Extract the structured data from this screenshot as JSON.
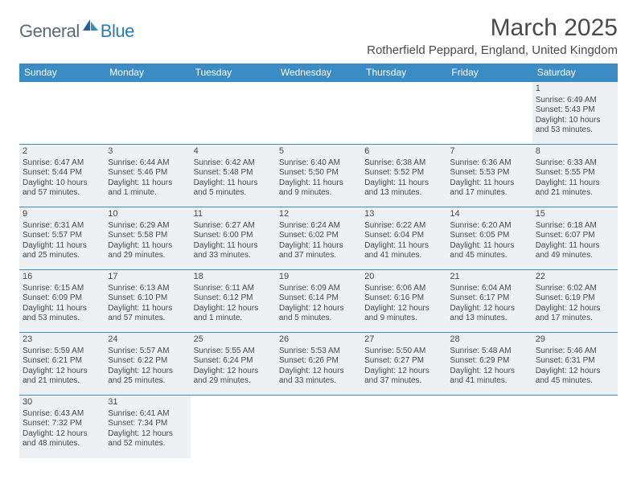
{
  "logo": {
    "text_a": "General",
    "text_b": "Blue"
  },
  "title": "March 2025",
  "location": "Rotherfield Peppard, England, United Kingdom",
  "colors": {
    "header_bg": "#3b8bc4",
    "header_text": "#ffffff",
    "cell_filled_bg": "#eef1f3",
    "cell_border": "#3b8bc4",
    "text": "#4a4a4a",
    "logo_gray": "#5a6a72",
    "logo_blue": "#2a7ab8"
  },
  "weekdays": [
    "Sunday",
    "Monday",
    "Tuesday",
    "Wednesday",
    "Thursday",
    "Friday",
    "Saturday"
  ],
  "weeks": [
    [
      null,
      null,
      null,
      null,
      null,
      null,
      {
        "n": "1",
        "sr": "Sunrise: 6:49 AM",
        "ss": "Sunset: 5:43 PM",
        "d1": "Daylight: 10 hours",
        "d2": "and 53 minutes."
      }
    ],
    [
      {
        "n": "2",
        "sr": "Sunrise: 6:47 AM",
        "ss": "Sunset: 5:44 PM",
        "d1": "Daylight: 10 hours",
        "d2": "and 57 minutes."
      },
      {
        "n": "3",
        "sr": "Sunrise: 6:44 AM",
        "ss": "Sunset: 5:46 PM",
        "d1": "Daylight: 11 hours",
        "d2": "and 1 minute."
      },
      {
        "n": "4",
        "sr": "Sunrise: 6:42 AM",
        "ss": "Sunset: 5:48 PM",
        "d1": "Daylight: 11 hours",
        "d2": "and 5 minutes."
      },
      {
        "n": "5",
        "sr": "Sunrise: 6:40 AM",
        "ss": "Sunset: 5:50 PM",
        "d1": "Daylight: 11 hours",
        "d2": "and 9 minutes."
      },
      {
        "n": "6",
        "sr": "Sunrise: 6:38 AM",
        "ss": "Sunset: 5:52 PM",
        "d1": "Daylight: 11 hours",
        "d2": "and 13 minutes."
      },
      {
        "n": "7",
        "sr": "Sunrise: 6:36 AM",
        "ss": "Sunset: 5:53 PM",
        "d1": "Daylight: 11 hours",
        "d2": "and 17 minutes."
      },
      {
        "n": "8",
        "sr": "Sunrise: 6:33 AM",
        "ss": "Sunset: 5:55 PM",
        "d1": "Daylight: 11 hours",
        "d2": "and 21 minutes."
      }
    ],
    [
      {
        "n": "9",
        "sr": "Sunrise: 6:31 AM",
        "ss": "Sunset: 5:57 PM",
        "d1": "Daylight: 11 hours",
        "d2": "and 25 minutes."
      },
      {
        "n": "10",
        "sr": "Sunrise: 6:29 AM",
        "ss": "Sunset: 5:58 PM",
        "d1": "Daylight: 11 hours",
        "d2": "and 29 minutes."
      },
      {
        "n": "11",
        "sr": "Sunrise: 6:27 AM",
        "ss": "Sunset: 6:00 PM",
        "d1": "Daylight: 11 hours",
        "d2": "and 33 minutes."
      },
      {
        "n": "12",
        "sr": "Sunrise: 6:24 AM",
        "ss": "Sunset: 6:02 PM",
        "d1": "Daylight: 11 hours",
        "d2": "and 37 minutes."
      },
      {
        "n": "13",
        "sr": "Sunrise: 6:22 AM",
        "ss": "Sunset: 6:04 PM",
        "d1": "Daylight: 11 hours",
        "d2": "and 41 minutes."
      },
      {
        "n": "14",
        "sr": "Sunrise: 6:20 AM",
        "ss": "Sunset: 6:05 PM",
        "d1": "Daylight: 11 hours",
        "d2": "and 45 minutes."
      },
      {
        "n": "15",
        "sr": "Sunrise: 6:18 AM",
        "ss": "Sunset: 6:07 PM",
        "d1": "Daylight: 11 hours",
        "d2": "and 49 minutes."
      }
    ],
    [
      {
        "n": "16",
        "sr": "Sunrise: 6:15 AM",
        "ss": "Sunset: 6:09 PM",
        "d1": "Daylight: 11 hours",
        "d2": "and 53 minutes."
      },
      {
        "n": "17",
        "sr": "Sunrise: 6:13 AM",
        "ss": "Sunset: 6:10 PM",
        "d1": "Daylight: 11 hours",
        "d2": "and 57 minutes."
      },
      {
        "n": "18",
        "sr": "Sunrise: 6:11 AM",
        "ss": "Sunset: 6:12 PM",
        "d1": "Daylight: 12 hours",
        "d2": "and 1 minute."
      },
      {
        "n": "19",
        "sr": "Sunrise: 6:09 AM",
        "ss": "Sunset: 6:14 PM",
        "d1": "Daylight: 12 hours",
        "d2": "and 5 minutes."
      },
      {
        "n": "20",
        "sr": "Sunrise: 6:06 AM",
        "ss": "Sunset: 6:16 PM",
        "d1": "Daylight: 12 hours",
        "d2": "and 9 minutes."
      },
      {
        "n": "21",
        "sr": "Sunrise: 6:04 AM",
        "ss": "Sunset: 6:17 PM",
        "d1": "Daylight: 12 hours",
        "d2": "and 13 minutes."
      },
      {
        "n": "22",
        "sr": "Sunrise: 6:02 AM",
        "ss": "Sunset: 6:19 PM",
        "d1": "Daylight: 12 hours",
        "d2": "and 17 minutes."
      }
    ],
    [
      {
        "n": "23",
        "sr": "Sunrise: 5:59 AM",
        "ss": "Sunset: 6:21 PM",
        "d1": "Daylight: 12 hours",
        "d2": "and 21 minutes."
      },
      {
        "n": "24",
        "sr": "Sunrise: 5:57 AM",
        "ss": "Sunset: 6:22 PM",
        "d1": "Daylight: 12 hours",
        "d2": "and 25 minutes."
      },
      {
        "n": "25",
        "sr": "Sunrise: 5:55 AM",
        "ss": "Sunset: 6:24 PM",
        "d1": "Daylight: 12 hours",
        "d2": "and 29 minutes."
      },
      {
        "n": "26",
        "sr": "Sunrise: 5:53 AM",
        "ss": "Sunset: 6:26 PM",
        "d1": "Daylight: 12 hours",
        "d2": "and 33 minutes."
      },
      {
        "n": "27",
        "sr": "Sunrise: 5:50 AM",
        "ss": "Sunset: 6:27 PM",
        "d1": "Daylight: 12 hours",
        "d2": "and 37 minutes."
      },
      {
        "n": "28",
        "sr": "Sunrise: 5:48 AM",
        "ss": "Sunset: 6:29 PM",
        "d1": "Daylight: 12 hours",
        "d2": "and 41 minutes."
      },
      {
        "n": "29",
        "sr": "Sunrise: 5:46 AM",
        "ss": "Sunset: 6:31 PM",
        "d1": "Daylight: 12 hours",
        "d2": "and 45 minutes."
      }
    ],
    [
      {
        "n": "30",
        "sr": "Sunrise: 6:43 AM",
        "ss": "Sunset: 7:32 PM",
        "d1": "Daylight: 12 hours",
        "d2": "and 48 minutes."
      },
      {
        "n": "31",
        "sr": "Sunrise: 6:41 AM",
        "ss": "Sunset: 7:34 PM",
        "d1": "Daylight: 12 hours",
        "d2": "and 52 minutes."
      },
      null,
      null,
      null,
      null,
      null
    ]
  ]
}
